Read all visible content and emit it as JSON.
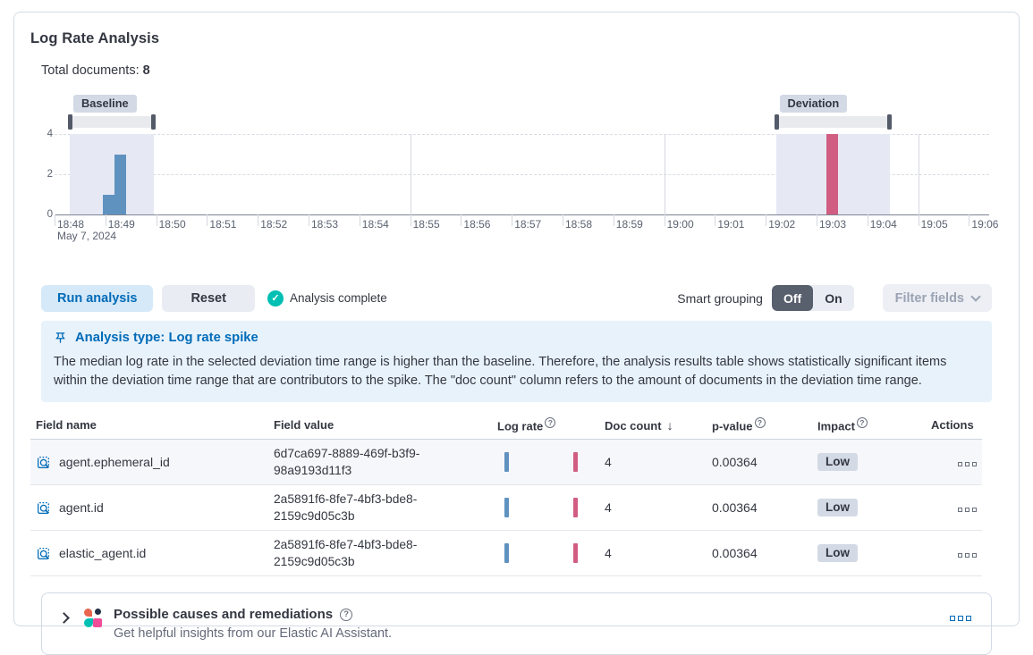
{
  "panel": {
    "title": "Log Rate Analysis",
    "total_documents_label": "Total documents:",
    "total_documents_value": "8"
  },
  "chart_data": {
    "type": "bar",
    "title": "",
    "xlabel": "",
    "ylabel": "",
    "ylim": [
      0,
      4
    ],
    "y_axis": {
      "ticks": [
        0,
        2,
        4
      ],
      "max": 4
    },
    "x_axis": {
      "tick_labels": [
        "18:48",
        "18:49",
        "18:50",
        "18:51",
        "18:52",
        "18:53",
        "18:54",
        "18:55",
        "18:56",
        "18:57",
        "18:58",
        "18:59",
        "19:00",
        "19:01",
        "19:02",
        "19:03",
        "19:04",
        "19:05",
        "19:06"
      ],
      "date_label": "May 7, 2024"
    },
    "grid_minutes": [
      7,
      12,
      17
    ],
    "windows": [
      {
        "name": "baseline",
        "label": "Baseline",
        "start_min": 0.3,
        "end_min": 1.95
      },
      {
        "name": "deviation",
        "label": "Deviation",
        "start_min": 14.2,
        "end_min": 16.45
      }
    ],
    "bars": [
      {
        "time": "18:48:50",
        "minute": 0.95,
        "value": 1,
        "series": "baseline"
      },
      {
        "time": "18:49:00",
        "minute": 1.18,
        "value": 3,
        "series": "baseline"
      },
      {
        "time": "19:03:10",
        "minute": 15.2,
        "value": 4,
        "series": "deviation"
      }
    ]
  },
  "controls": {
    "run_analysis": "Run analysis",
    "reset": "Reset",
    "status": "Analysis complete",
    "smart_grouping_label": "Smart grouping",
    "off": "Off",
    "on": "On",
    "filter_fields": "Filter fields"
  },
  "callout": {
    "title": "Analysis type: Log rate spike",
    "body": "The median log rate in the selected deviation time range is higher than the baseline. Therefore, the analysis results table shows statistically significant items within the deviation time range that are contributors to the spike. The \"doc count\" column refers to the amount of documents in the deviation time range."
  },
  "table": {
    "headers": {
      "field_name": "Field name",
      "field_value": "Field value",
      "log_rate": "Log rate",
      "doc_count": "Doc count",
      "doc_count_sort": "↓",
      "p_value": "p-value",
      "impact": "Impact",
      "actions": "Actions"
    },
    "rows": [
      {
        "field_name": "agent.ephemeral_id",
        "field_value": "6d7ca697-8889-469f-b3f9-98a9193d11f3",
        "doc_count": "4",
        "p_value": "0.00364",
        "impact": "Low"
      },
      {
        "field_name": "agent.id",
        "field_value": "2a5891f6-8fe7-4bf3-bde8-2159c9d05c3b",
        "doc_count": "4",
        "p_value": "0.00364",
        "impact": "Low"
      },
      {
        "field_name": "elastic_agent.id",
        "field_value": "2a5891f6-8fe7-4bf3-bde8-2159c9d05c3b",
        "doc_count": "4",
        "p_value": "0.00364",
        "impact": "Low"
      }
    ]
  },
  "footer": {
    "title": "Possible causes and remediations",
    "subtitle": "Get helpful insights from our Elastic AI Assistant."
  },
  "colors": {
    "primary": "#006bb8",
    "primary_light_bg": "#d6e9f8",
    "text": "#343741",
    "subtle_text": "#646a79",
    "disabled_text": "#9aa3b3",
    "success": "#00bfb3",
    "bar_baseline": "#6092c0",
    "bar_deviation": "#d15d82",
    "window_shade": "#e6e9f3",
    "badge_bg": "#d3dae6",
    "button_grey_bg": "#e9edf3",
    "toggle_selected_bg": "#585f6d",
    "panel_border": "#d3dae6",
    "row_border": "#e4e7ed",
    "grid_line": "#d8dce3",
    "callout_bg": "#e8f2fb",
    "brush_track": "#e8eaee",
    "brush_handle": "#535a68",
    "ai_coral": "#e8654f",
    "ai_navy": "#222f44",
    "ai_teal": "#00bfb3",
    "ai_pink": "#f04e98"
  }
}
